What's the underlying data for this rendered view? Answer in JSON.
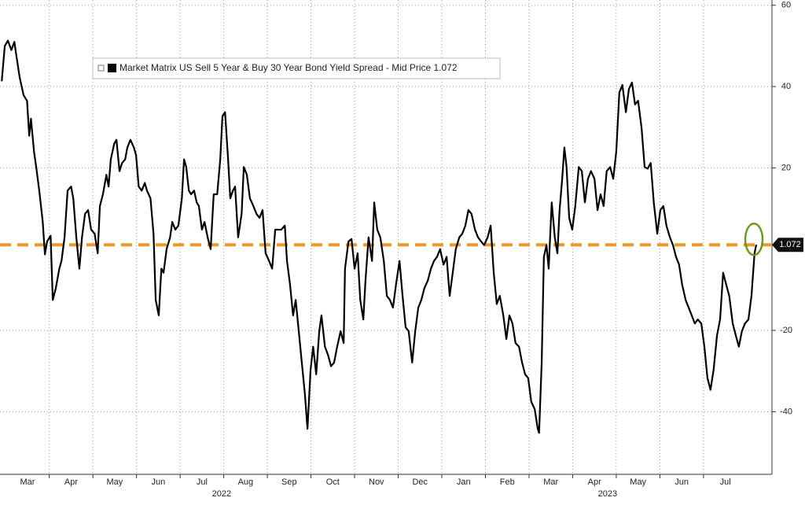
{
  "chart_data": {
    "type": "line",
    "xlim": [
      -0.13,
      17.57
    ],
    "ylim": [
      -55.4,
      61.3
    ],
    "yticks": [
      -40,
      -20,
      20,
      40,
      60
    ],
    "xticks": [
      {
        "value": 0.5,
        "label": "Mar"
      },
      {
        "value": 1.5,
        "label": "Apr"
      },
      {
        "value": 2.5,
        "label": "May"
      },
      {
        "value": 3.5,
        "label": "Jun"
      },
      {
        "value": 4.5,
        "label": "Jul"
      },
      {
        "value": 5.5,
        "label": "Aug"
      },
      {
        "value": 6.5,
        "label": "Sep"
      },
      {
        "value": 7.5,
        "label": "Oct"
      },
      {
        "value": 8.5,
        "label": "Nov"
      },
      {
        "value": 9.5,
        "label": "Dec"
      },
      {
        "value": 10.5,
        "label": "Jan"
      },
      {
        "value": 11.5,
        "label": "Feb"
      },
      {
        "value": 12.5,
        "label": "Mar"
      },
      {
        "value": 13.5,
        "label": "Apr"
      },
      {
        "value": 14.5,
        "label": "May"
      },
      {
        "value": 15.5,
        "label": "Jun"
      },
      {
        "value": 16.5,
        "label": "Jul"
      }
    ],
    "year_ticks": [
      {
        "value": 4.95,
        "label": "2022"
      },
      {
        "value": 13.8,
        "label": "2023"
      }
    ],
    "grid": true,
    "reference_line": {
      "value": 1.072,
      "color": "#f0962a"
    },
    "series": [
      {
        "name": "Market Matrix US Sell 5 Year & Buy 30 Year Bond Yield Spread - Mid Price 1.072",
        "color": "#000000",
        "x": [
          -0.09,
          -0.02,
          0.05,
          0.13,
          0.2,
          0.23,
          0.32,
          0.41,
          0.49,
          0.54,
          0.58,
          0.65,
          0.7,
          0.77,
          0.85,
          0.9,
          0.95,
          1.03,
          1.08,
          1.15,
          1.23,
          1.28,
          1.35,
          1.42,
          1.5,
          1.55,
          1.62,
          1.69,
          1.75,
          1.82,
          1.89,
          1.96,
          2.04,
          2.11,
          2.16,
          2.23,
          2.31,
          2.36,
          2.41,
          2.49,
          2.54,
          2.61,
          2.67,
          2.74,
          2.79,
          2.86,
          2.94,
          2.99,
          3.05,
          3.12,
          3.19,
          3.24,
          3.32,
          3.39,
          3.44,
          3.51,
          3.57,
          3.62,
          3.69,
          3.77,
          3.82,
          3.89,
          3.96,
          4.04,
          4.09,
          4.14,
          4.2,
          4.25,
          4.32,
          4.38,
          4.43,
          4.5,
          4.56,
          4.63,
          4.7,
          4.77,
          4.85,
          4.92,
          4.97,
          5.03,
          5.1,
          5.15,
          5.21,
          5.26,
          5.33,
          5.41,
          5.46,
          5.53,
          5.6,
          5.68,
          5.75,
          5.82,
          5.89,
          5.96,
          6.04,
          6.11,
          6.18,
          6.25,
          6.32,
          6.4,
          6.45,
          6.52,
          6.59,
          6.65,
          6.72,
          6.79,
          6.86,
          6.92,
          6.99,
          7.05,
          7.12,
          7.19,
          7.24,
          7.32,
          7.39,
          7.46,
          7.53,
          7.6,
          7.68,
          7.75,
          7.78,
          7.86,
          7.93,
          8.0,
          8.07,
          8.13,
          8.2,
          8.25,
          8.32,
          8.4,
          8.45,
          8.52,
          8.59,
          8.67,
          8.74,
          8.81,
          8.88,
          8.95,
          9.03,
          9.1,
          9.17,
          9.24,
          9.32,
          9.39,
          9.46,
          9.53,
          9.6,
          9.68,
          9.75,
          9.82,
          9.89,
          9.96,
          10.04,
          10.11,
          10.18,
          10.25,
          10.32,
          10.4,
          10.47,
          10.54,
          10.61,
          10.68,
          10.76,
          10.83,
          10.9,
          10.97,
          11.05,
          11.12,
          11.19,
          11.26,
          11.33,
          11.41,
          11.48,
          11.55,
          11.62,
          11.69,
          11.77,
          11.84,
          11.91,
          11.98,
          12.05,
          12.13,
          12.2,
          12.23,
          12.29,
          12.34,
          12.4,
          12.45,
          12.52,
          12.59,
          12.65,
          12.7,
          12.76,
          12.81,
          12.86,
          12.92,
          12.99,
          13.06,
          13.14,
          13.21,
          13.28,
          13.35,
          13.42,
          13.5,
          13.57,
          13.64,
          13.71,
          13.78,
          13.86,
          13.93,
          14.0,
          14.07,
          14.14,
          14.22,
          14.29,
          14.36,
          14.43,
          14.5,
          14.58,
          14.65,
          14.72,
          14.79,
          14.86,
          14.94,
          15.01,
          15.08,
          15.15,
          15.23,
          15.3,
          15.37,
          15.44,
          15.51,
          15.59,
          15.66,
          15.73,
          15.8,
          15.87,
          15.95,
          16.02,
          16.09,
          16.16,
          16.23,
          16.31,
          16.38,
          16.45,
          16.52,
          16.59,
          16.67,
          16.74,
          16.81,
          16.88,
          16.95,
          17.03,
          17.1,
          17.17,
          17.21
        ],
        "values": [
          41.3,
          50.0,
          51.3,
          49.0,
          51.0,
          48.7,
          42.3,
          37.9,
          36.5,
          27.9,
          32.1,
          24.0,
          20.2,
          14.4,
          6.7,
          -1.3,
          1.9,
          3.3,
          -12.5,
          -9.6,
          -4.8,
          -2.9,
          2.9,
          14.4,
          15.4,
          12.5,
          2.9,
          -4.8,
          2.9,
          8.7,
          9.6,
          4.8,
          3.8,
          -1.0,
          10.6,
          13.5,
          18.3,
          15.4,
          22.1,
          26.0,
          26.9,
          19.2,
          21.2,
          22.1,
          25.0,
          26.9,
          25.0,
          23.1,
          15.4,
          14.4,
          16.3,
          14.4,
          12.5,
          3.8,
          -12.5,
          -16.3,
          -4.8,
          -5.8,
          0.0,
          2.9,
          6.7,
          4.8,
          5.8,
          12.5,
          22.1,
          20.2,
          14.4,
          13.5,
          14.4,
          11.5,
          10.6,
          4.8,
          6.7,
          2.9,
          0.0,
          13.5,
          13.5,
          22.1,
          32.7,
          33.7,
          22.1,
          12.5,
          14.4,
          15.4,
          2.9,
          8.7,
          20.2,
          18.3,
          12.5,
          10.6,
          8.7,
          7.7,
          9.6,
          -1.0,
          -2.9,
          -4.8,
          4.8,
          4.8,
          4.8,
          5.8,
          -2.9,
          -8.7,
          -16.3,
          -12.5,
          -20.2,
          -27.9,
          -35.6,
          -44.2,
          -29.8,
          -24.0,
          -30.8,
          -20.2,
          -16.3,
          -24.0,
          -26.0,
          -28.8,
          -27.9,
          -24.0,
          -20.2,
          -23.1,
          -4.8,
          1.9,
          2.5,
          -4.8,
          -1.0,
          -12.5,
          -17.3,
          -7.7,
          2.9,
          -2.9,
          11.5,
          4.8,
          2.9,
          -2.9,
          -11.5,
          -12.5,
          -14.4,
          -8.7,
          -2.9,
          -11.5,
          -19.2,
          -20.2,
          -27.9,
          -20.2,
          -14.4,
          -12.5,
          -9.6,
          -7.7,
          -4.8,
          -2.9,
          -1.9,
          0.0,
          -3.8,
          -1.9,
          -11.5,
          -5.8,
          0.0,
          2.9,
          3.8,
          5.8,
          9.6,
          8.7,
          4.8,
          2.9,
          1.9,
          1.0,
          2.9,
          5.8,
          -5.8,
          -13.5,
          -11.5,
          -16.3,
          -22.1,
          -16.3,
          -18.3,
          -23.1,
          -24.0,
          -27.9,
          -30.8,
          -31.7,
          -37.5,
          -39.4,
          -44.2,
          -45.2,
          -27.9,
          -1.9,
          1.0,
          -4.8,
          11.5,
          2.9,
          -1.0,
          9.6,
          17.3,
          25.0,
          20.2,
          7.7,
          4.8,
          10.6,
          20.2,
          19.2,
          11.5,
          17.3,
          19.2,
          17.3,
          9.6,
          13.5,
          10.6,
          19.2,
          20.2,
          17.3,
          24.0,
          38.5,
          40.4,
          33.7,
          39.4,
          41.0,
          35.6,
          36.5,
          29.8,
          20.2,
          19.8,
          21.2,
          11.5,
          3.8,
          9.6,
          10.6,
          5.8,
          2.9,
          1.0,
          -1.9,
          -3.8,
          -8.7,
          -12.5,
          -14.4,
          -16.3,
          -18.3,
          -17.3,
          -18.3,
          -24.0,
          -31.7,
          -34.6,
          -29.8,
          -21.2,
          -17.3,
          -5.8,
          -8.7,
          -11.5,
          -18.3,
          -21.2,
          -24.0,
          -20.2,
          -18.3,
          -17.3,
          -11.5,
          -1.0,
          1.072
        ]
      }
    ]
  }
}
